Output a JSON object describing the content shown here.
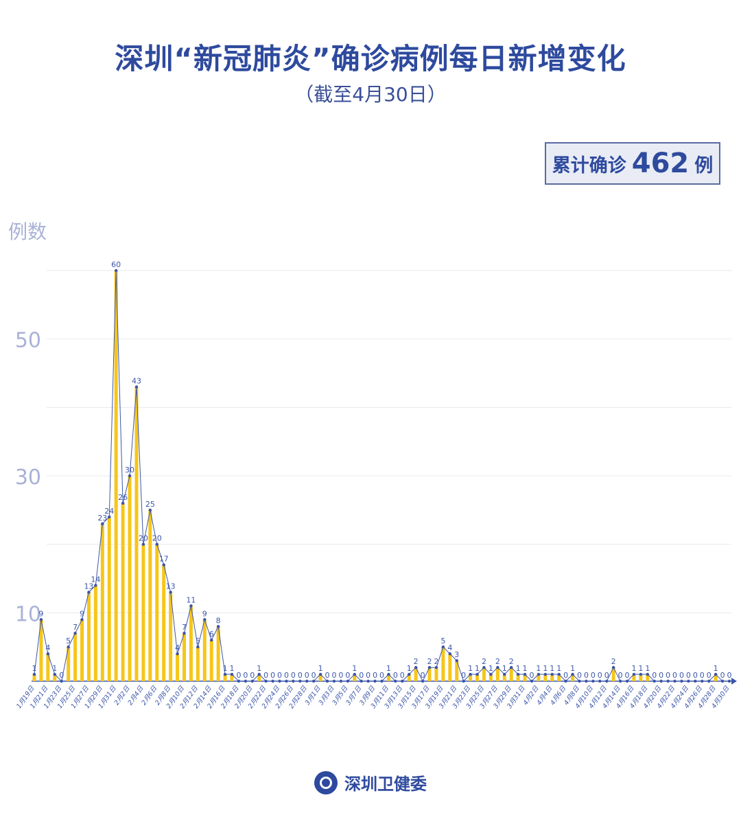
{
  "title": "深圳“新冠肺炎”确诊病例每日新增变化",
  "subtitle": "（截至4月30日）",
  "total": {
    "label": "累计确诊",
    "value": "462",
    "unit": "例"
  },
  "footer": {
    "org": "深圳卫健委",
    "logo_icon": "shenzhen-health-commission-seal"
  },
  "colors": {
    "bar": "#f6c619",
    "line": "#3b55a8",
    "title": "#2e4a9e",
    "axis_tick": "#a9b2d6"
  },
  "chart_data": {
    "type": "bar+line",
    "ylabel": "例数",
    "ylim": [
      0,
      60
    ],
    "y_ticks": [
      10,
      30,
      50
    ],
    "gridlines": [
      10,
      20,
      30,
      40,
      50,
      60
    ],
    "grid": true,
    "x_tick_labels": [
      "1月19日",
      "1月21日",
      "1月23日",
      "1月25日",
      "1月27日",
      "1月29日",
      "1月31日",
      "2月2日",
      "2月4日",
      "2月6日",
      "2月8日",
      "2月10日",
      "2月12日",
      "2月14日",
      "2月16日",
      "2月18日",
      "2月20日",
      "2月22日",
      "2月24日",
      "2月26日",
      "2月28日",
      "3月1日",
      "3月3日",
      "3月5日",
      "3月7日",
      "3月9日",
      "3月11日",
      "3月13日",
      "3月15日",
      "3月17日",
      "3月19日",
      "3月21日",
      "3月23日",
      "3月25日",
      "3月27日",
      "3月29日",
      "3月31日",
      "4月2日",
      "4月4日",
      "4月6日",
      "4月8日",
      "4月10日",
      "4月12日",
      "4月14日",
      "4月16日",
      "4月18日",
      "4月20日",
      "4月22日",
      "4月24日",
      "4月26日",
      "4月28日",
      "4月30日"
    ],
    "values": [
      1,
      9,
      4,
      1,
      0,
      5,
      7,
      9,
      13,
      14,
      23,
      24,
      60,
      26,
      30,
      43,
      20,
      25,
      20,
      17,
      13,
      4,
      7,
      11,
      5,
      9,
      6,
      8,
      1,
      1,
      0,
      0,
      0,
      1,
      0,
      0,
      0,
      0,
      0,
      0,
      0,
      0,
      1,
      0,
      0,
      0,
      0,
      1,
      0,
      0,
      0,
      0,
      1,
      0,
      0,
      1,
      2,
      0,
      2,
      2,
      5,
      4,
      3,
      0,
      1,
      1,
      2,
      1,
      2,
      1,
      2,
      1,
      1,
      0,
      1,
      1,
      1,
      1,
      0,
      1,
      0,
      0,
      0,
      0,
      0,
      2,
      0,
      0,
      1,
      1,
      1,
      0,
      0,
      0,
      0,
      0,
      0,
      0,
      0,
      0,
      1,
      0,
      0
    ]
  }
}
